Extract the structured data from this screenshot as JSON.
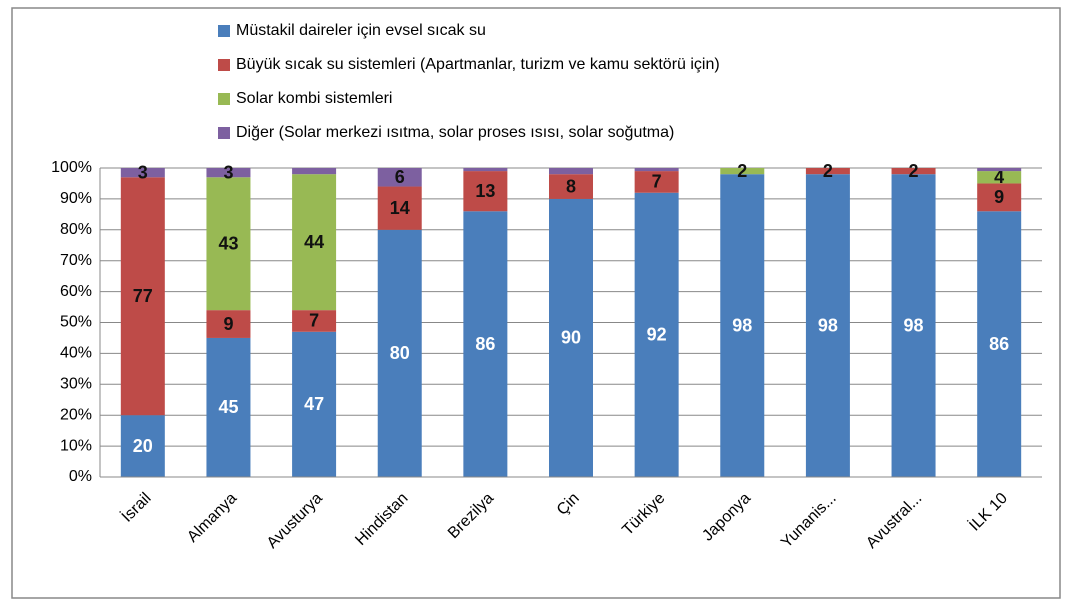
{
  "chart_data": {
    "type": "stacked-bar",
    "categories": [
      "İsrail",
      "Almanya",
      "Avusturya",
      "Hindistan",
      "Brezilya",
      "Çin",
      "Türkiye",
      "Japonya",
      "Yunanis...",
      "Avustral...",
      "İLK 10"
    ],
    "series": [
      {
        "name": "Müstakil daireler için evsel sıcak su",
        "color": "#4a7ebb",
        "values": [
          20,
          45,
          47,
          80,
          86,
          90,
          92,
          98,
          98,
          98,
          86
        ],
        "value_labels": [
          "20",
          "45",
          "47",
          "80",
          "86",
          "90",
          "92",
          "98",
          "98",
          "98",
          "86"
        ]
      },
      {
        "name": "Büyük sıcak su sistemleri (Apartmanlar, turizm ve kamu sektörü için)",
        "color": "#be4b48",
        "values": [
          77,
          9,
          7,
          14,
          13,
          8,
          7,
          0,
          2,
          2,
          9
        ],
        "value_labels": [
          "77",
          "9",
          "7",
          "14",
          "13",
          "8",
          "7",
          null,
          "2",
          "2",
          "9"
        ]
      },
      {
        "name": "Solar kombi sistemleri",
        "color": "#98b954",
        "values": [
          0,
          43,
          44,
          0,
          0,
          0,
          0,
          2,
          0,
          0,
          4
        ],
        "value_labels": [
          null,
          "43",
          "44",
          null,
          null,
          null,
          null,
          "2",
          null,
          null,
          "4"
        ]
      },
      {
        "name": "Diğer (Solar merkezi ısıtma, solar proses ısısı, solar soğutma)",
        "color": "#7d60a0",
        "values": [
          3,
          3,
          2,
          6,
          1,
          2,
          1,
          0,
          0,
          0,
          1
        ],
        "value_labels": [
          "3",
          "3",
          null,
          "6",
          null,
          null,
          null,
          null,
          null,
          null,
          null
        ]
      }
    ],
    "ylim": [
      0,
      100
    ],
    "yticks": [
      {
        "value": 0,
        "label": "0%"
      },
      {
        "value": 10,
        "label": "10%"
      },
      {
        "value": 20,
        "label": "20%"
      },
      {
        "value": 30,
        "label": "30%"
      },
      {
        "value": 40,
        "label": "40%"
      },
      {
        "value": 50,
        "label": "50%"
      },
      {
        "value": 60,
        "label": "60%"
      },
      {
        "value": 70,
        "label": "70%"
      },
      {
        "value": 80,
        "label": "80%"
      },
      {
        "value": 90,
        "label": "90%"
      },
      {
        "value": 100,
        "label": "100%"
      }
    ],
    "grid": true,
    "legend": "top"
  }
}
